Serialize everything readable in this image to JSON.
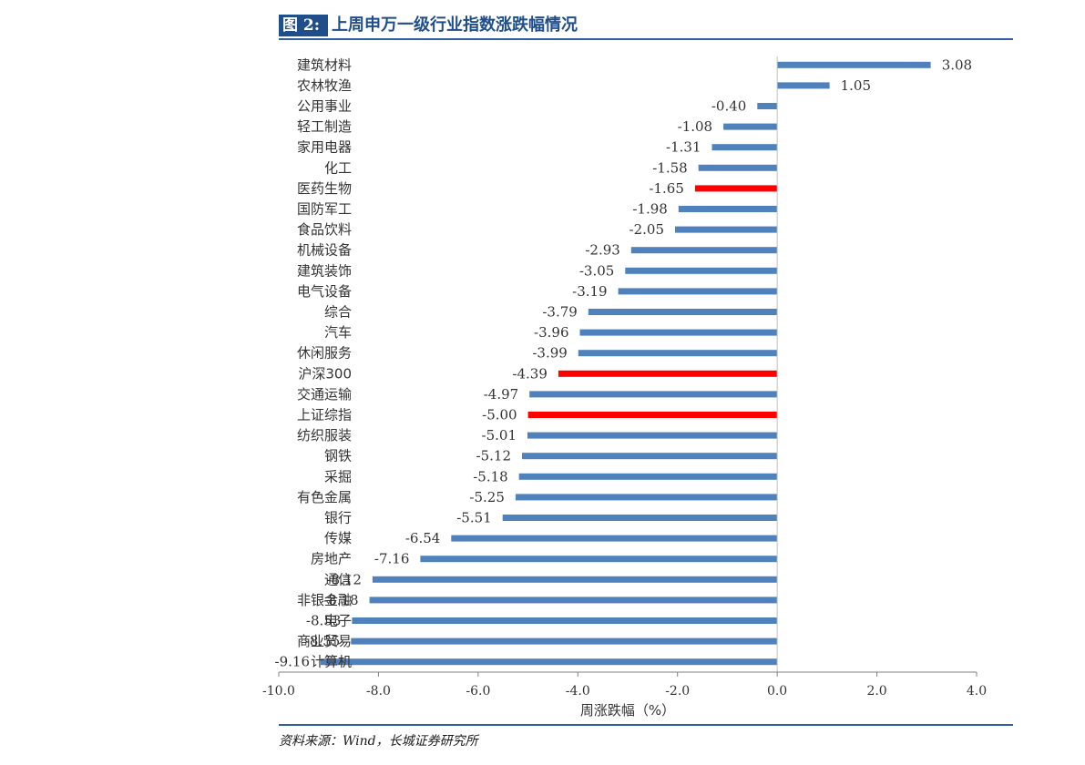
{
  "figure": {
    "number": "图 2:",
    "title": "上周申万一级行业指数涨跌幅情况",
    "source": "资料来源：Wind，长城证券研究所"
  },
  "colors": {
    "bar": "#4f81bd",
    "highlight": "#ff0000",
    "rule": "#2e5fa3",
    "header_bg": "#1f4e8a"
  },
  "chart_data": {
    "type": "bar",
    "orientation": "horizontal",
    "xlabel": "周涨跌幅（%）",
    "xlim": [
      -10.0,
      4.0
    ],
    "xticks": [
      -10.0,
      -8.0,
      -6.0,
      -4.0,
      -2.0,
      0.0,
      2.0,
      4.0
    ],
    "xtick_labels": [
      "-10.0",
      "-8.0",
      "-6.0",
      "-4.0",
      "-2.0",
      "0.0",
      "2.0",
      "4.0"
    ],
    "grid": false,
    "categories": [
      "建筑材料",
      "农林牧渔",
      "公用事业",
      "轻工制造",
      "家用电器",
      "化工",
      "医药生物",
      "国防军工",
      "食品饮料",
      "机械设备",
      "建筑装饰",
      "电气设备",
      "综合",
      "汽车",
      "休闲服务",
      "沪深300",
      "交通运输",
      "上证综指",
      "纺织服装",
      "钢铁",
      "采掘",
      "有色金属",
      "银行",
      "传媒",
      "房地产",
      "通信",
      "非银金融",
      "电子",
      "商业贸易",
      "计算机"
    ],
    "values": [
      3.08,
      1.05,
      -0.4,
      -1.08,
      -1.31,
      -1.58,
      -1.65,
      -1.98,
      -2.05,
      -2.93,
      -3.05,
      -3.19,
      -3.79,
      -3.96,
      -3.99,
      -4.39,
      -4.97,
      -5.0,
      -5.01,
      -5.12,
      -5.18,
      -5.25,
      -5.51,
      -6.54,
      -7.16,
      -8.12,
      -8.18,
      -8.53,
      -8.55,
      -9.16
    ],
    "value_labels": [
      "3.08",
      "1.05",
      "-0.40",
      "-1.08",
      "-1.31",
      "-1.58",
      "-1.65",
      "-1.98",
      "-2.05",
      "-2.93",
      "-3.05",
      "-3.19",
      "-3.79",
      "-3.96",
      "-3.99",
      "-4.39",
      "-4.97",
      "-5.00",
      "-5.01",
      "-5.12",
      "-5.18",
      "-5.25",
      "-5.51",
      "-6.54",
      "-7.16",
      "-8.12",
      "-8.18",
      "-8.53",
      "-8.55",
      "-9.16"
    ],
    "highlighted": [
      "医药生物",
      "沪深300",
      "上证综指"
    ]
  }
}
